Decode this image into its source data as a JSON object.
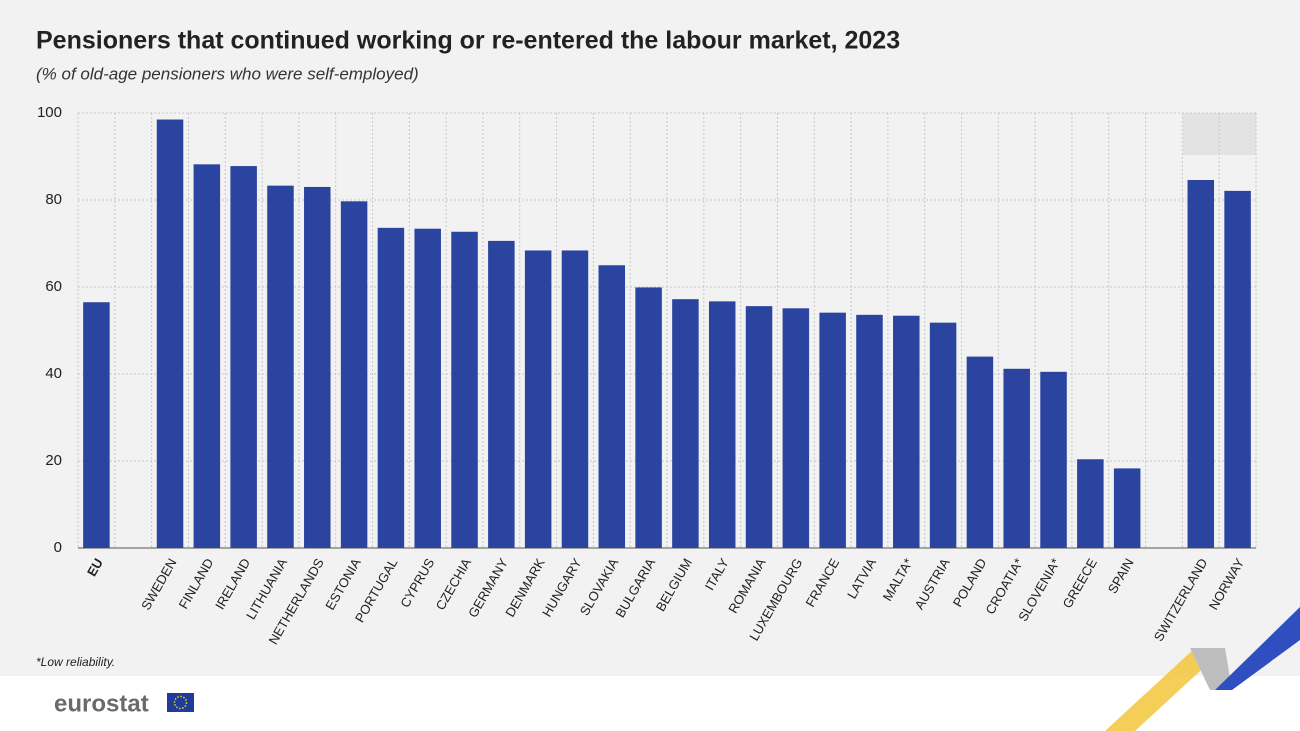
{
  "chart_data": {
    "type": "bar",
    "title": "Pensioners that continued working or re-entered the labour market, 2023",
    "subtitle": "(% of old-age pensioners who were self-employed)",
    "categories": [
      "EU",
      null,
      "SWEDEN",
      "FINLAND",
      "IRELAND",
      "LITHUANIA",
      "NETHERLANDS",
      "ESTONIA",
      "PORTUGAL",
      "CYPRUS",
      "CZECHIA",
      "GERMANY",
      "DENMARK",
      "HUNGARY",
      "SLOVAKIA",
      "BULGARIA",
      "BELGIUM",
      "ITALY",
      "ROMANIA",
      "LUXEMBOURG",
      "FRANCE",
      "LATVIA",
      "MALTA*",
      "AUSTRIA",
      "POLAND",
      "CROATIA*",
      "SLOVENIA*",
      "GREECE",
      "SPAIN",
      null,
      "SWITZERLAND",
      "NORWAY"
    ],
    "values": [
      56.5,
      null,
      98.5,
      88.2,
      87.8,
      83.3,
      83.0,
      79.7,
      73.6,
      73.4,
      72.7,
      70.6,
      68.4,
      68.4,
      65.0,
      59.9,
      57.2,
      56.7,
      55.6,
      55.1,
      54.1,
      53.6,
      53.4,
      51.8,
      44.0,
      41.2,
      40.5,
      20.4,
      18.3,
      null,
      84.6,
      82.1
    ],
    "color": "#2b44a0",
    "ylim": [
      0,
      100
    ],
    "yticks": [
      0,
      20,
      40,
      60,
      80,
      100
    ],
    "grid": true,
    "footnote": "*Low reliability.",
    "logo": "eurostat"
  }
}
